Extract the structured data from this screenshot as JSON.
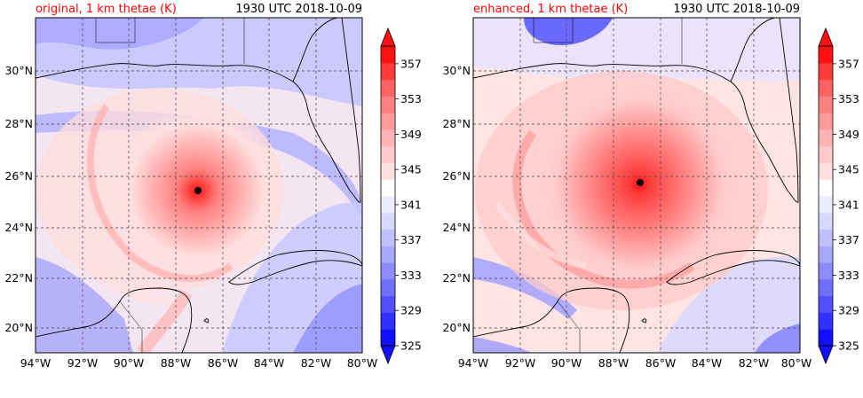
{
  "panels": [
    {
      "id": "left",
      "label": "original, 1 km thetae (K)",
      "time": "1930 UTC 2018-10-09",
      "center_marker": {
        "lon": -87.1,
        "lat": 25.4
      }
    },
    {
      "id": "right",
      "label": "enhanced, 1 km thetae (K)",
      "time": "1930 UTC 2018-10-09",
      "center_marker": {
        "lon": -86.9,
        "lat": 25.7
      }
    }
  ],
  "map_extent": {
    "lon_min": -94,
    "lon_max": -80,
    "lat_min": 18.2,
    "lat_max": 32
  },
  "lon_ticks": [
    "94°W",
    "92°W",
    "90°W",
    "88°W",
    "86°W",
    "84°W",
    "82°W",
    "80°W"
  ],
  "lat_ticks": [
    "20°N",
    "22°N",
    "24°N",
    "26°N",
    "28°N",
    "30°N"
  ],
  "colorbar": {
    "tick_labels": [
      "325",
      "329",
      "333",
      "337",
      "341",
      "345",
      "349",
      "353",
      "357"
    ],
    "levels": [
      325,
      327,
      329,
      331,
      333,
      335,
      337,
      339,
      341,
      343,
      345,
      347,
      349,
      351,
      353,
      355,
      357,
      359
    ],
    "colors": [
      "#1010ff",
      "#3030ff",
      "#5050ff",
      "#7070ff",
      "#8c8cff",
      "#a8a8ff",
      "#c0c0ff",
      "#d8d8ff",
      "#ececff",
      "#ffffff",
      "#ffe0e0",
      "#ffcaca",
      "#ffb4b4",
      "#ff9a9a",
      "#ff8080",
      "#ff6262",
      "#ff3a3a",
      "#ff1010"
    ],
    "extend": "both"
  },
  "style": {
    "label_color": "#ff0000",
    "marker_color": "#000000"
  }
}
